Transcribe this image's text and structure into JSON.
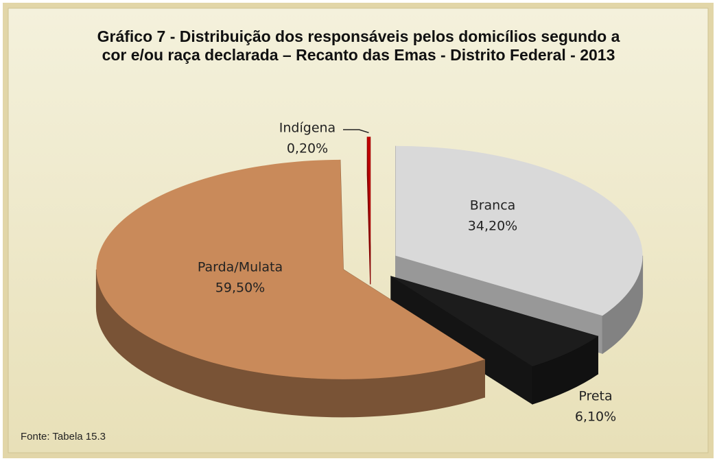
{
  "chart_data": {
    "type": "pie3d",
    "title": "Gráfico 7 - Distribuição dos responsáveis pelos domicílios segundo a cor e/ou raça declarada – Recanto das Emas - Distrito Federal - 2013",
    "categories": [
      "Branca",
      "Preta",
      "Parda/Mulata",
      "Indígena"
    ],
    "values": [
      34.2,
      6.1,
      59.5,
      0.2
    ],
    "value_labels": [
      "34,20%",
      "6,10%",
      "59,50%",
      "0,20%"
    ],
    "colors": [
      "#d9d9d9",
      "#1c1c1c",
      "#c98a5a",
      "#c00000"
    ],
    "source": "Fonte: Tabela 15.3"
  }
}
